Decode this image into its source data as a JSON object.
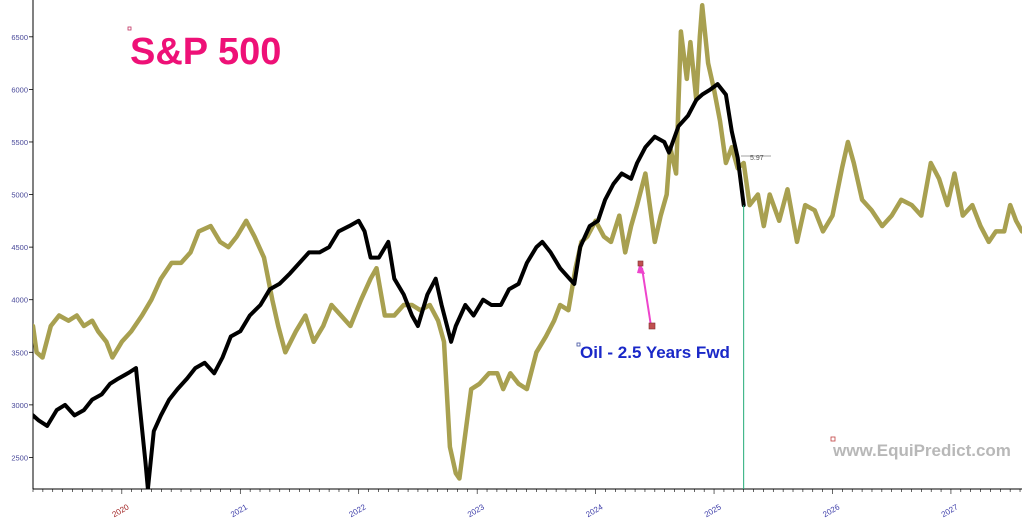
{
  "chart_data": {
    "type": "line",
    "title": "S&P 500",
    "annotation": "Oil - 2.5 Years Fwd",
    "watermark": "www.EquiPredict.com",
    "current_value_label": "5.97",
    "yticks": [
      2500,
      3000,
      3500,
      4000,
      4500,
      5000,
      5500,
      6000,
      6500
    ],
    "xticks": [
      "2020",
      "2021",
      "2022",
      "2023",
      "2024",
      "2025",
      "2026",
      "2027"
    ],
    "highlight_xtick": "2020",
    "ylim": [
      2200,
      6850
    ],
    "xlim": [
      2019.25,
      2027.6
    ],
    "grid": false,
    "series": [
      {
        "name": "S&P 500",
        "color": "#000000",
        "x": [
          2019.25,
          2019.3,
          2019.37,
          2019.45,
          2019.52,
          2019.6,
          2019.68,
          2019.75,
          2019.83,
          2019.9,
          2019.97,
          2020.05,
          2020.12,
          2020.15,
          2020.2,
          2020.22,
          2020.27,
          2020.33,
          2020.4,
          2020.47,
          2020.55,
          2020.62,
          2020.7,
          2020.78,
          2020.85,
          2020.92,
          2021.0,
          2021.08,
          2021.17,
          2021.25,
          2021.33,
          2021.42,
          2021.5,
          2021.58,
          2021.67,
          2021.75,
          2021.83,
          2021.92,
          2022.0,
          2022.05,
          2022.1,
          2022.17,
          2022.25,
          2022.3,
          2022.38,
          2022.45,
          2022.5,
          2022.58,
          2022.65,
          2022.7,
          2022.78,
          2022.82,
          2022.9,
          2022.97,
          2023.05,
          2023.12,
          2023.2,
          2023.27,
          2023.35,
          2023.42,
          2023.5,
          2023.55,
          2023.62,
          2023.7,
          2023.78,
          2023.82,
          2023.87,
          2023.95,
          2024.02,
          2024.08,
          2024.15,
          2024.22,
          2024.3,
          2024.35,
          2024.42,
          2024.5,
          2024.58,
          2024.62,
          2024.7,
          2024.78,
          2024.85,
          2024.9,
          2024.97,
          2025.03,
          2025.1,
          2025.15,
          2025.2,
          2025.25
        ],
        "values": [
          2900,
          2850,
          2800,
          2950,
          3000,
          2900,
          2950,
          3050,
          3100,
          3200,
          3250,
          3300,
          3350,
          3000,
          2450,
          2200,
          2750,
          2900,
          3050,
          3150,
          3250,
          3350,
          3400,
          3300,
          3450,
          3650,
          3700,
          3850,
          3950,
          4100,
          4150,
          4250,
          4350,
          4450,
          4450,
          4500,
          4650,
          4700,
          4750,
          4650,
          4400,
          4400,
          4550,
          4200,
          4050,
          3850,
          3750,
          4050,
          4200,
          3950,
          3600,
          3750,
          3950,
          3850,
          4000,
          3950,
          3950,
          4100,
          4150,
          4350,
          4500,
          4550,
          4450,
          4300,
          4200,
          4150,
          4500,
          4700,
          4750,
          4950,
          5100,
          5200,
          5150,
          5300,
          5450,
          5550,
          5500,
          5400,
          5650,
          5750,
          5900,
          5950,
          6000,
          6050,
          5950,
          5600,
          5350,
          4900
        ]
      },
      {
        "name": "Oil - 2.5 Years Fwd",
        "color": "#a8a050",
        "x": [
          2019.25,
          2019.28,
          2019.33,
          2019.4,
          2019.47,
          2019.55,
          2019.62,
          2019.68,
          2019.75,
          2019.8,
          2019.87,
          2019.92,
          2020.0,
          2020.08,
          2020.17,
          2020.25,
          2020.33,
          2020.42,
          2020.5,
          2020.58,
          2020.65,
          2020.75,
          2020.83,
          2020.9,
          2020.97,
          2021.05,
          2021.12,
          2021.2,
          2021.27,
          2021.32,
          2021.38,
          2021.47,
          2021.55,
          2021.62,
          2021.7,
          2021.77,
          2021.85,
          2021.93,
          2022.02,
          2022.1,
          2022.15,
          2022.22,
          2022.3,
          2022.38,
          2022.45,
          2022.52,
          2022.6,
          2022.67,
          2022.72,
          2022.77,
          2022.82,
          2022.85,
          2022.88,
          2022.95,
          2023.02,
          2023.1,
          2023.17,
          2023.22,
          2023.28,
          2023.35,
          2023.42,
          2023.5,
          2023.58,
          2023.65,
          2023.7,
          2023.77,
          2023.83,
          2023.88,
          2023.93,
          2024.0,
          2024.07,
          2024.13,
          2024.2,
          2024.25,
          2024.3,
          2024.35,
          2024.42,
          2024.5,
          2024.55,
          2024.6,
          2024.63,
          2024.68,
          2024.72,
          2024.77,
          2024.8,
          2024.85,
          2024.88,
          2024.9,
          2024.95,
          2025.0,
          2025.05,
          2025.1,
          2025.15,
          2025.2,
          2025.25,
          2025.3,
          2025.37,
          2025.42,
          2025.47,
          2025.55,
          2025.62,
          2025.7,
          2025.77,
          2025.85,
          2025.92,
          2026.0,
          2026.08,
          2026.13,
          2026.18,
          2026.25,
          2026.33,
          2026.42,
          2026.5,
          2026.58,
          2026.67,
          2026.75,
          2026.83,
          2026.9,
          2026.97,
          2027.03,
          2027.1,
          2027.18,
          2027.25,
          2027.32,
          2027.38,
          2027.45,
          2027.5,
          2027.55,
          2027.6
        ],
        "values": [
          3750,
          3500,
          3450,
          3750,
          3850,
          3800,
          3850,
          3750,
          3800,
          3700,
          3600,
          3450,
          3600,
          3700,
          3850,
          4000,
          4200,
          4350,
          4350,
          4450,
          4650,
          4700,
          4550,
          4500,
          4600,
          4750,
          4600,
          4400,
          4000,
          3750,
          3500,
          3700,
          3850,
          3600,
          3750,
          3950,
          3850,
          3750,
          4000,
          4200,
          4300,
          3850,
          3850,
          3950,
          3950,
          3900,
          3950,
          3800,
          3600,
          2600,
          2350,
          2300,
          2550,
          3150,
          3200,
          3300,
          3300,
          3150,
          3300,
          3200,
          3150,
          3500,
          3650,
          3800,
          3950,
          3900,
          4300,
          4550,
          4600,
          4750,
          4600,
          4550,
          4800,
          4450,
          4700,
          4900,
          5200,
          4550,
          4800,
          5000,
          5450,
          5200,
          6550,
          6100,
          6450,
          5900,
          6500,
          6800,
          6250,
          6000,
          5700,
          5300,
          5450,
          5250,
          5300,
          4900,
          5000,
          4700,
          5000,
          4750,
          5050,
          4550,
          4900,
          4850,
          4650,
          4800,
          5250,
          5500,
          5300,
          4950,
          4850,
          4700,
          4800,
          4950,
          4900,
          4800,
          5300,
          5150,
          4900,
          5200,
          4800,
          4900,
          4700,
          4550,
          4650,
          4650,
          4900,
          4750,
          4650
        ]
      }
    ]
  }
}
